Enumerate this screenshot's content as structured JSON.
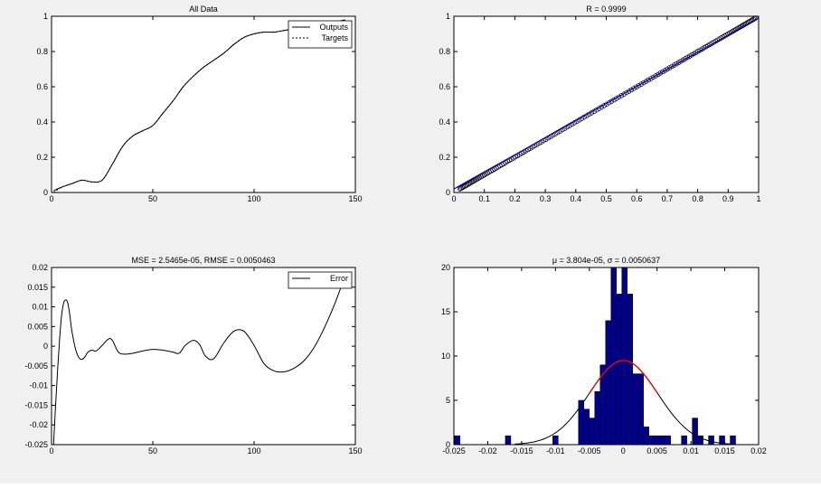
{
  "chart_data": [
    {
      "id": "all-data",
      "type": "line",
      "title": "All Data",
      "xlim": [
        0,
        150
      ],
      "ylim": [
        0,
        1
      ],
      "xticks": [
        "0",
        "50",
        "100",
        "150"
      ],
      "yticks": [
        "0",
        "0.2",
        "0.4",
        "0.6",
        "0.8",
        "1"
      ],
      "grid": false,
      "legend": "top-right",
      "series": [
        {
          "name": "Outputs",
          "style": "solid",
          "x": [
            1,
            5,
            10,
            15,
            20,
            25,
            30,
            35,
            40,
            45,
            50,
            55,
            60,
            65,
            70,
            75,
            80,
            85,
            90,
            95,
            100,
            105,
            110,
            115,
            120,
            125,
            130,
            135,
            140,
            145
          ],
          "y": [
            0.01,
            0.03,
            0.05,
            0.07,
            0.06,
            0.07,
            0.16,
            0.26,
            0.32,
            0.35,
            0.38,
            0.45,
            0.52,
            0.6,
            0.66,
            0.71,
            0.75,
            0.79,
            0.84,
            0.88,
            0.9,
            0.91,
            0.91,
            0.92,
            0.93,
            0.95,
            0.96,
            0.97,
            0.97,
            0.98
          ]
        },
        {
          "name": "Targets",
          "style": "dashed",
          "x": [
            1,
            5,
            10,
            15,
            20,
            25,
            30,
            35,
            40,
            45,
            50,
            55,
            60,
            65,
            70,
            75,
            80,
            85,
            90,
            95,
            100,
            105,
            110,
            115,
            120,
            125,
            130,
            135,
            140,
            145
          ],
          "y": [
            0.0,
            0.03,
            0.05,
            0.07,
            0.06,
            0.07,
            0.16,
            0.26,
            0.32,
            0.35,
            0.38,
            0.45,
            0.52,
            0.6,
            0.66,
            0.71,
            0.75,
            0.79,
            0.84,
            0.88,
            0.9,
            0.91,
            0.91,
            0.92,
            0.93,
            0.95,
            0.96,
            0.97,
            0.97,
            0.97
          ]
        }
      ]
    },
    {
      "id": "regression",
      "type": "scatter",
      "title": "R = 0.9999",
      "xlim": [
        0,
        1
      ],
      "ylim": [
        0,
        1
      ],
      "xticks": [
        "0",
        "0.1",
        "0.2",
        "0.3",
        "0.4",
        "0.5",
        "0.6",
        "0.7",
        "0.8",
        "0.9",
        "1"
      ],
      "yticks": [
        "0",
        "0.2",
        "0.4",
        "0.6",
        "0.8",
        "1"
      ],
      "grid": false,
      "point_range": [
        0.02,
        0.99
      ],
      "point_count": 150,
      "point_color": "#000000",
      "fit_line": {
        "from": [
          0.0,
          0.02
        ],
        "to": [
          1.0,
          0.99
        ],
        "color": "#0000cc"
      }
    },
    {
      "id": "error",
      "type": "line",
      "title": "MSE = 2.5465e-05, RMSE = 0.0050463",
      "xlim": [
        0,
        150
      ],
      "ylim": [
        -0.025,
        0.02
      ],
      "xticks": [
        "0",
        "50",
        "100",
        "150"
      ],
      "yticks": [
        "-0.025",
        "-0.02",
        "-0.015",
        "-0.01",
        "-0.005",
        "0",
        "0.005",
        "0.01",
        "0.015",
        "0.02"
      ],
      "grid": false,
      "legend": "top-right",
      "series": [
        {
          "name": "Error",
          "style": "solid",
          "x": [
            1,
            2,
            3,
            4,
            5,
            6,
            7,
            8,
            9,
            10,
            12,
            14,
            16,
            18,
            20,
            22,
            25,
            28,
            30,
            33,
            36,
            40,
            45,
            50,
            55,
            60,
            63,
            66,
            70,
            73,
            76,
            80,
            85,
            90,
            95,
            100,
            105,
            110,
            115,
            120,
            125,
            130,
            135,
            140,
            145
          ],
          "y": [
            -0.025,
            -0.015,
            -0.006,
            0.002,
            0.008,
            0.011,
            0.0118,
            0.011,
            0.008,
            0.004,
            -0.001,
            -0.0032,
            -0.003,
            -0.0015,
            -0.001,
            -0.0012,
            0.0002,
            0.0018,
            0.0015,
            -0.0015,
            -0.002,
            -0.0018,
            -0.0012,
            -0.0008,
            -0.001,
            -0.0015,
            -0.0018,
            0.0002,
            0.0015,
            0.0005,
            -0.0025,
            -0.0032,
            0.0008,
            0.0038,
            0.0038,
            0.0002,
            -0.0045,
            -0.0063,
            -0.0065,
            -0.0055,
            -0.0035,
            0.0,
            0.005,
            0.011,
            0.018
          ]
        }
      ]
    },
    {
      "id": "histogram",
      "type": "bar",
      "title": "μ = 3.804e-05, σ = 0.0050637",
      "xlim": [
        -0.025,
        0.02
      ],
      "ylim": [
        0,
        20
      ],
      "xticks": [
        "-0.025",
        "-0.02",
        "-0.015",
        "-0.01",
        "-0.005",
        "0",
        "0.005",
        "0.01",
        "0.015",
        "0.02"
      ],
      "yticks": [
        "0",
        "5",
        "10",
        "15",
        "20"
      ],
      "grid": false,
      "bin_width": 0.0008,
      "bar_color": "#00008b",
      "bins": [
        {
          "x": -0.0245,
          "count": 1
        },
        {
          "x": -0.017,
          "count": 1
        },
        {
          "x": -0.01,
          "count": 1
        },
        {
          "x": -0.0062,
          "count": 5
        },
        {
          "x": -0.0054,
          "count": 4
        },
        {
          "x": -0.0046,
          "count": 3
        },
        {
          "x": -0.0038,
          "count": 6
        },
        {
          "x": -0.003,
          "count": 9
        },
        {
          "x": -0.0022,
          "count": 14
        },
        {
          "x": -0.0014,
          "count": 20
        },
        {
          "x": -0.0006,
          "count": 17
        },
        {
          "x": 0.0002,
          "count": 20
        },
        {
          "x": 0.001,
          "count": 17
        },
        {
          "x": 0.0018,
          "count": 8
        },
        {
          "x": 0.0026,
          "count": 8
        },
        {
          "x": 0.0034,
          "count": 2
        },
        {
          "x": 0.0042,
          "count": 1
        },
        {
          "x": 0.005,
          "count": 1
        },
        {
          "x": 0.0058,
          "count": 1
        },
        {
          "x": 0.0066,
          "count": 1
        },
        {
          "x": 0.009,
          "count": 1
        },
        {
          "x": 0.0106,
          "count": 3
        },
        {
          "x": 0.0114,
          "count": 1
        },
        {
          "x": 0.013,
          "count": 1
        },
        {
          "x": 0.0146,
          "count": 1
        },
        {
          "x": 0.0162,
          "count": 1
        }
      ],
      "fit_curve": {
        "mean": 3.804e-05,
        "sigma": 0.0050637,
        "peak": 9.5,
        "color": "#000000",
        "center_color": "#ff0000",
        "center_range": [
          -0.005,
          0.005
        ]
      }
    }
  ]
}
